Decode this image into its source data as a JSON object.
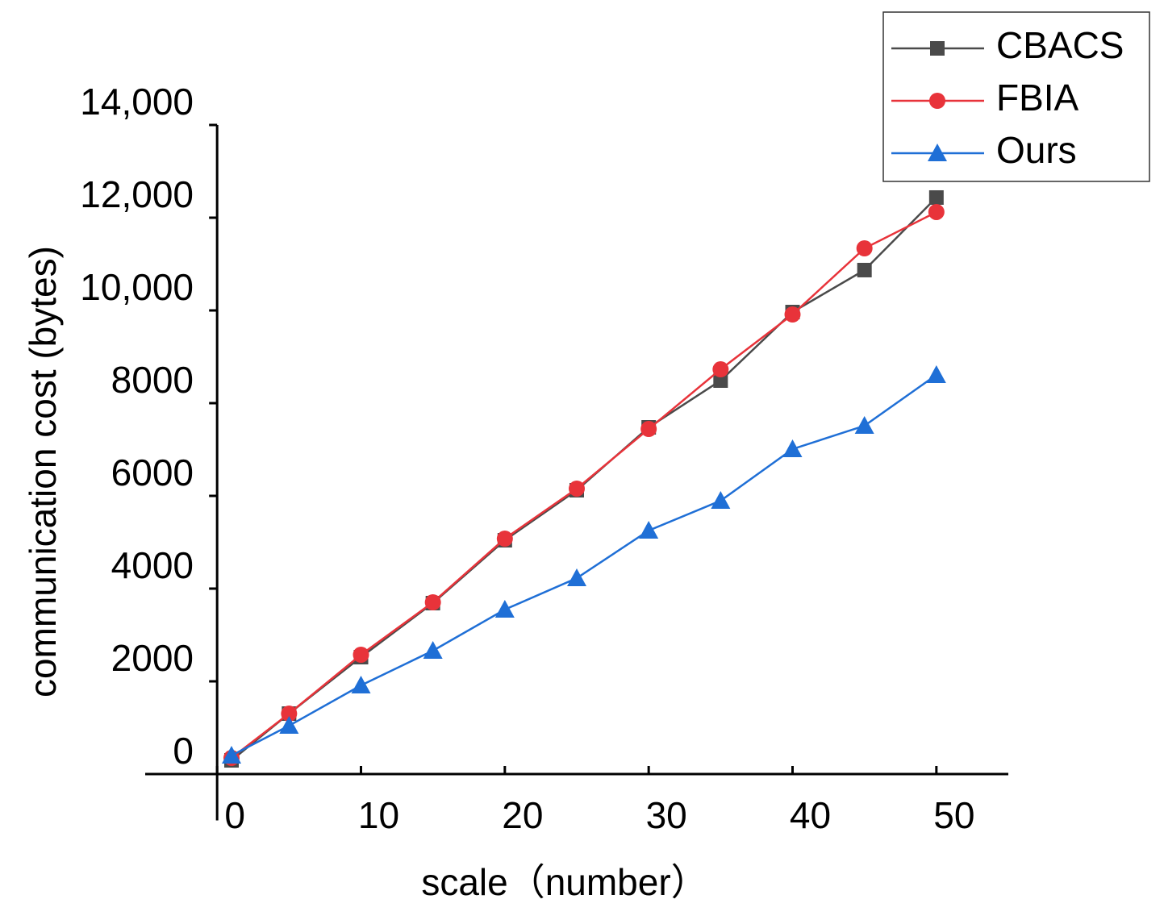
{
  "chart_data": {
    "type": "line",
    "x_label": "scale（number）",
    "y_label": "communication cost (bytes)",
    "x": [
      1,
      5,
      10,
      15,
      20,
      25,
      30,
      35,
      40,
      45,
      50
    ],
    "series": [
      {
        "name": "CBACS",
        "color": "#4a4a4a",
        "marker": "square",
        "values": [
          296,
          1304,
          2522,
          3687,
          5043,
          6122,
          7478,
          8487,
          9965,
          10870,
          12435
        ]
      },
      {
        "name": "FBIA",
        "color": "#e8333a",
        "marker": "circle",
        "values": [
          348,
          1304,
          2574,
          3704,
          5078,
          6157,
          7443,
          8730,
          9913,
          11339,
          12122
        ]
      },
      {
        "name": "Ours",
        "color": "#1f6fd6",
        "marker": "triangle",
        "values": [
          400,
          1043,
          1913,
          2661,
          3548,
          4226,
          5252,
          5896,
          7009,
          7513,
          8609
        ]
      }
    ],
    "xlim": [
      -5,
      55
    ],
    "xticks": [
      0,
      10,
      20,
      30,
      40,
      50
    ],
    "ylim": [
      -1000,
      14000
    ],
    "yticks": [
      0,
      2000,
      4000,
      6000,
      8000,
      {
        "value": 10000,
        "label": "10,000"
      },
      {
        "value": 12000,
        "label": "12,000"
      },
      {
        "value": 14000,
        "label": "14,000"
      }
    ],
    "legend": "top-right"
  }
}
